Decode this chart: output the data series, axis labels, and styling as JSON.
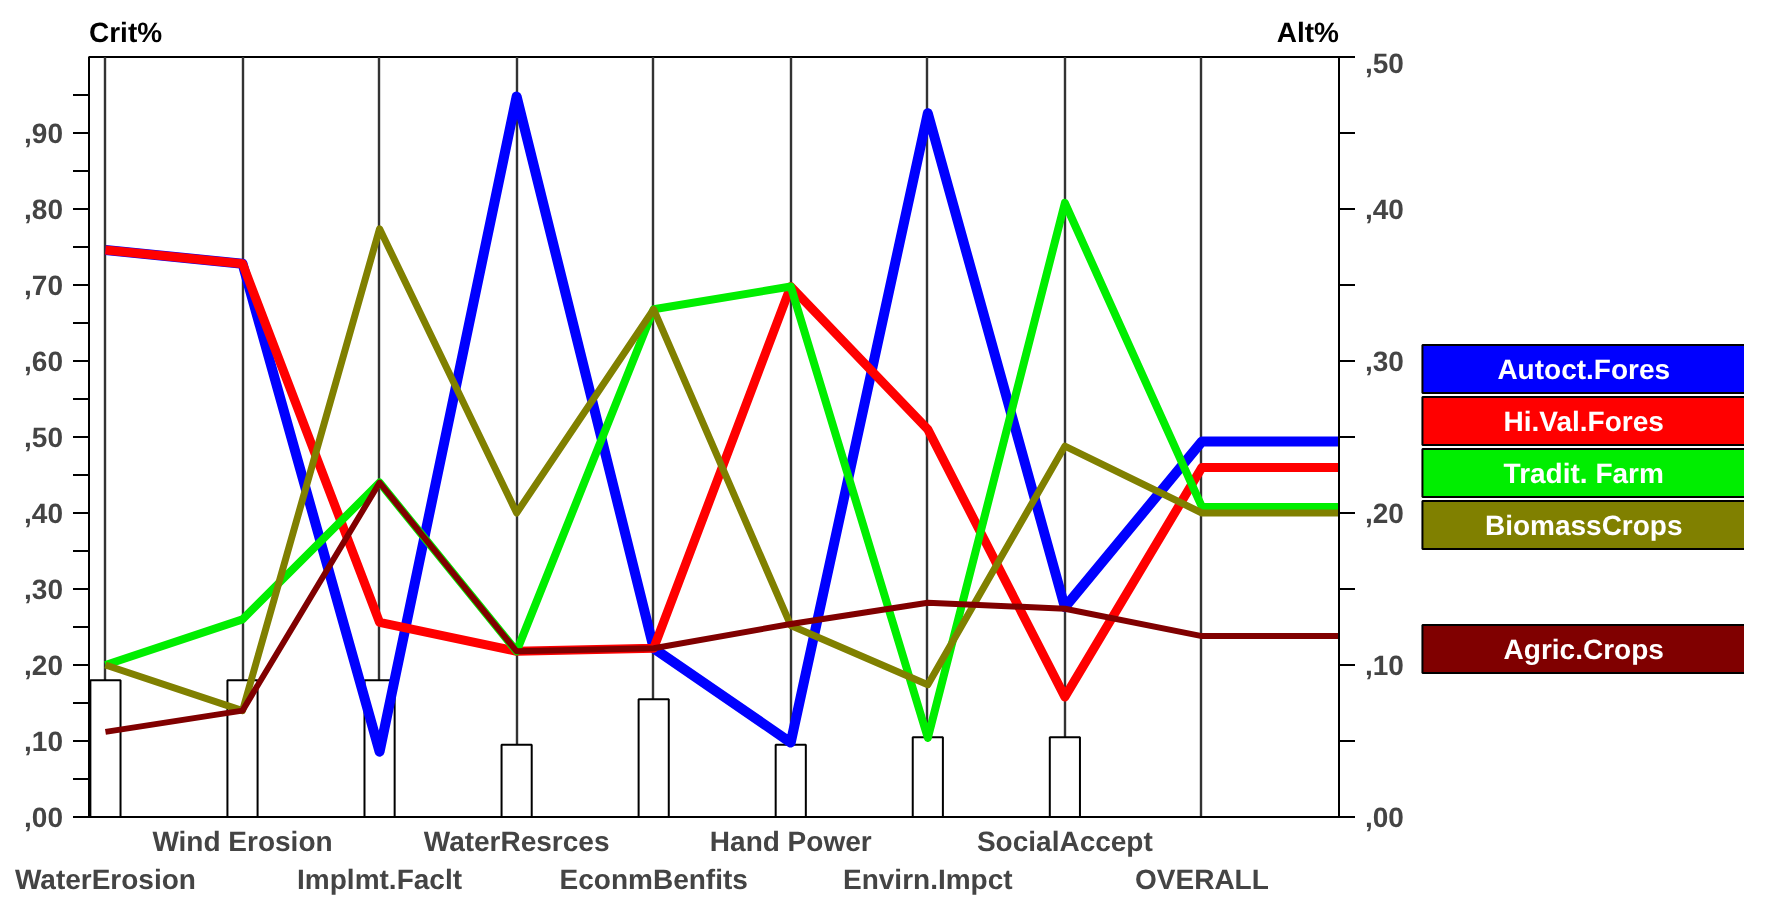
{
  "chart_data": {
    "type": "line",
    "categories": [
      "WaterErosion",
      "Wind Erosion",
      "Implmt.Faclt",
      "WaterResrces",
      "EconmBenfits",
      "Hand Power",
      "Envirn.Impct",
      "SocialAccept",
      "OVERALL",
      null
    ],
    "ylabel": "Crit%",
    "y2label": "Alt%",
    "ylim": [
      0,
      100
    ],
    "yticks": [
      {
        "value": 0,
        "label": ",00"
      },
      {
        "value": 5,
        "label": null
      },
      {
        "value": 10,
        "label": ",10"
      },
      {
        "value": 15,
        "label": null
      },
      {
        "value": 20,
        "label": ",20"
      },
      {
        "value": 25,
        "label": null
      },
      {
        "value": 30,
        "label": ",30"
      },
      {
        "value": 35,
        "label": null
      },
      {
        "value": 40,
        "label": ",40"
      },
      {
        "value": 45,
        "label": null
      },
      {
        "value": 50,
        "label": ",50"
      },
      {
        "value": 55,
        "label": null
      },
      {
        "value": 60,
        "label": ",60"
      },
      {
        "value": 65,
        "label": null
      },
      {
        "value": 70,
        "label": ",70"
      },
      {
        "value": 75,
        "label": null
      },
      {
        "value": 80,
        "label": ",80"
      },
      {
        "value": 85,
        "label": null
      },
      {
        "value": 90,
        "label": ",90"
      },
      {
        "value": 95,
        "label": null
      }
    ],
    "y2lim": [
      0,
      50
    ],
    "y2ticks": [
      {
        "value": 0,
        "label": ",00"
      },
      {
        "value": 5,
        "label": null
      },
      {
        "value": 10,
        "label": ",10"
      },
      {
        "value": 15,
        "label": null
      },
      {
        "value": 20,
        "label": ",20"
      },
      {
        "value": 25,
        "label": null
      },
      {
        "value": 30,
        "label": ",30"
      },
      {
        "value": 35,
        "label": null
      },
      {
        "value": 40,
        "label": ",40"
      },
      {
        "value": 45,
        "label": null
      },
      {
        "value": 50,
        "label": ",50"
      }
    ],
    "grid": "x",
    "legend": "right",
    "series": [
      {
        "type": "bar",
        "color": "#ffffff",
        "values": [
          18,
          18,
          18,
          9.5,
          15.5,
          9.5,
          10.5,
          10.5,
          null,
          null
        ]
      },
      {
        "name": "Autoct.Fores",
        "color": "#0000ff",
        "axis": "y2",
        "values": [
          37.3,
          36.4,
          4.3,
          47.4,
          11.1,
          4.9,
          46.3,
          13.8,
          24.7,
          24.7
        ]
      },
      {
        "name": "Hi.Val.Fores",
        "color": "#ff0000",
        "axis": "y2",
        "values": [
          37.3,
          36.4,
          12.8,
          10.9,
          11.1,
          34.9,
          25.5,
          7.9,
          23,
          23
        ]
      },
      {
        "name": "Tradit. Farm",
        "color": "#00ee00",
        "axis": "y2",
        "values": [
          10,
          13,
          22,
          10.9,
          33.4,
          34.9,
          5.2,
          40.4,
          20.4,
          20.4
        ]
      },
      {
        "name": "BiomassCrops",
        "color": "#808000",
        "axis": "y2",
        "values": [
          10,
          7,
          38.7,
          20,
          33.4,
          12.6,
          8.7,
          24.4,
          20,
          20
        ]
      },
      {
        "name": "Agric.Crops",
        "color": "#800000",
        "axis": "y2",
        "values": [
          5.6,
          7,
          22,
          10.9,
          11.1,
          12.7,
          14.1,
          13.7,
          11.9,
          11.9
        ]
      }
    ]
  }
}
